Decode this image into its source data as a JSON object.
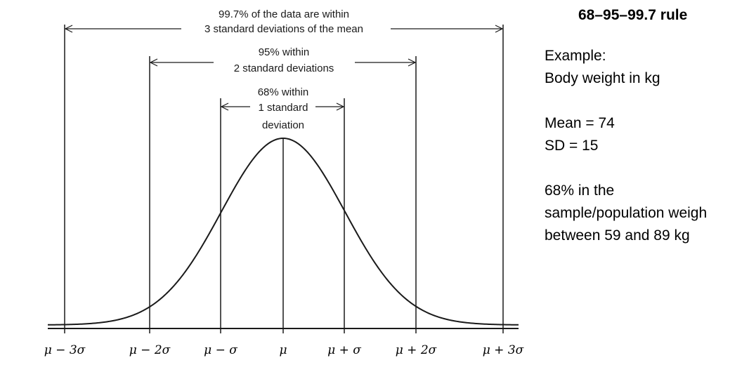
{
  "diagram": {
    "ticks": [
      "μ − 3σ",
      "μ − 2σ",
      "μ − σ",
      "μ",
      "μ + σ",
      "μ + 2σ",
      "μ + 3σ"
    ],
    "range3": {
      "line1": "99.7% of the data are within",
      "line2": "3 standard deviations of the mean"
    },
    "range2": {
      "line1": "95% within",
      "line2": "2 standard deviations"
    },
    "range1": {
      "line1": "68% within",
      "line2": "1 standard",
      "line3": "deviation"
    },
    "colors": {
      "line": "#1a1a1a"
    }
  },
  "panel": {
    "title": "68–95–99.7 rule",
    "example_label": "Example:",
    "example_desc": "Body weight in kg",
    "mean": "Mean = 74",
    "sd": "SD = 15",
    "result_line1": "68% in the",
    "result_line2": "sample/population weigh",
    "result_line3": "between 59 and 89 kg"
  }
}
